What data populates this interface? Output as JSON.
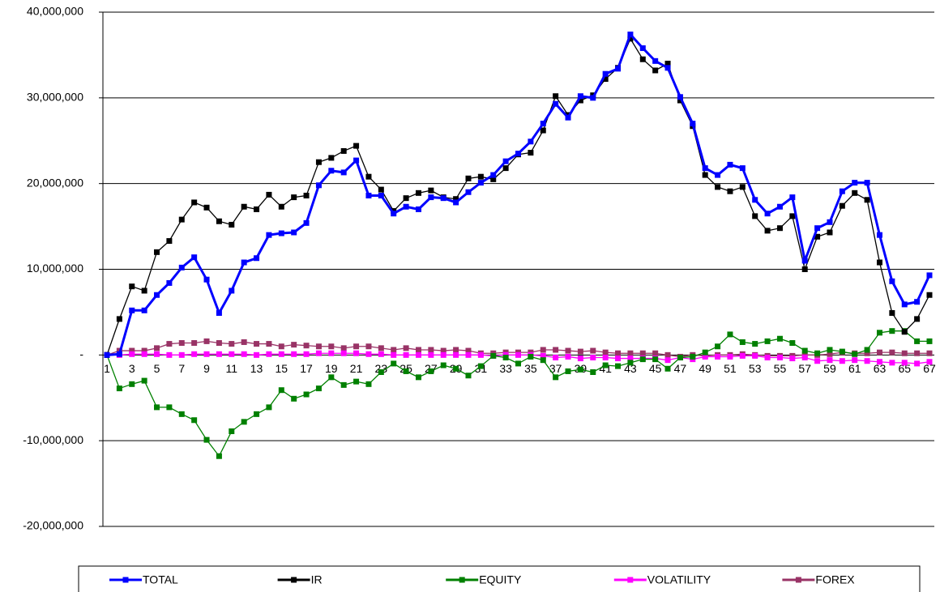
{
  "chart_data": {
    "type": "line",
    "categories": [
      1,
      null,
      3,
      null,
      5,
      null,
      7,
      null,
      9,
      null,
      11,
      null,
      13,
      null,
      15,
      null,
      17,
      null,
      19,
      null,
      21,
      null,
      23,
      null,
      25,
      null,
      27,
      null,
      29,
      null,
      31,
      null,
      33,
      null,
      35,
      null,
      37,
      null,
      39,
      null,
      41,
      null,
      43,
      null,
      45,
      null,
      47,
      null,
      49,
      null,
      51,
      null,
      53,
      null,
      55,
      null,
      57,
      null,
      59,
      null,
      61,
      null,
      63,
      null,
      65,
      null,
      67
    ],
    "ylim": [
      -20000000,
      40000000
    ],
    "yticks": [
      {
        "value": -20000000,
        "label": "-20,000,000"
      },
      {
        "value": -10000000,
        "label": "-10,000,000"
      },
      {
        "value": 0,
        "label": "-"
      },
      {
        "value": 10000000,
        "label": "10,000,000"
      },
      {
        "value": 20000000,
        "label": "20,000,000"
      },
      {
        "value": 30000000,
        "label": "30,000,000"
      },
      {
        "value": 40000000,
        "label": "40,000,000"
      }
    ],
    "grid": true,
    "legend": "bottom",
    "series": [
      {
        "name": "TOTAL",
        "color": "#0000ff",
        "values": [
          0,
          100000,
          5200000,
          5200000,
          7000000,
          8400000,
          10200000,
          11400000,
          8800000,
          4900000,
          7500000,
          10800000,
          11300000,
          14000000,
          14200000,
          14300000,
          15400000,
          19800000,
          21500000,
          21300000,
          22700000,
          18600000,
          18600000,
          16500000,
          17300000,
          17000000,
          18400000,
          18300000,
          17800000,
          19000000,
          20100000,
          21000000,
          22600000,
          23500000,
          24900000,
          27000000,
          29300000,
          27700000,
          30200000,
          30000000,
          32800000,
          33400000,
          37400000,
          35800000,
          34300000,
          33500000,
          30100000,
          27000000,
          21800000,
          21000000,
          22200000,
          21800000,
          18100000,
          16500000,
          17300000,
          18400000,
          11000000,
          14800000,
          15500000,
          19100000,
          20100000,
          20100000,
          14000000,
          8600000,
          5900000,
          6200000,
          9300000
        ]
      },
      {
        "name": "IR",
        "color": "#000000",
        "values": [
          0,
          4200000,
          8000000,
          7500000,
          12000000,
          13300000,
          15800000,
          17800000,
          17200000,
          15600000,
          15200000,
          17300000,
          17000000,
          18700000,
          17300000,
          18400000,
          18600000,
          22500000,
          23000000,
          23800000,
          24400000,
          20800000,
          19300000,
          16800000,
          18300000,
          18900000,
          19200000,
          18400000,
          18200000,
          20600000,
          20800000,
          20500000,
          21800000,
          23400000,
          23600000,
          26200000,
          30200000,
          28000000,
          29700000,
          30300000,
          32200000,
          33500000,
          36900000,
          34500000,
          33200000,
          34000000,
          29700000,
          26700000,
          21000000,
          19600000,
          19100000,
          19600000,
          16200000,
          14500000,
          14800000,
          16200000,
          10000000,
          13800000,
          14300000,
          17400000,
          18900000,
          18100000,
          10800000,
          4900000,
          2700000,
          4200000,
          7000000
        ]
      },
      {
        "name": "EQUITY",
        "color": "#008000",
        "values": [
          0,
          -3900000,
          -3400000,
          -3000000,
          -6100000,
          -6100000,
          -6900000,
          -7600000,
          -9900000,
          -11800000,
          -8900000,
          -7800000,
          -6900000,
          -6100000,
          -4100000,
          -5100000,
          -4600000,
          -3900000,
          -2600000,
          -3500000,
          -3100000,
          -3400000,
          -2000000,
          -1000000,
          -1900000,
          -2600000,
          -1900000,
          -1200000,
          -1600000,
          -2400000,
          -1300000,
          -100000,
          -300000,
          -1000000,
          -200000,
          -600000,
          -2600000,
          -1900000,
          -1700000,
          -2000000,
          -1200000,
          -1300000,
          -900000,
          -500000,
          -500000,
          -1600000,
          -300000,
          -200000,
          300000,
          1000000,
          2400000,
          1500000,
          1300000,
          1600000,
          1900000,
          1400000,
          500000,
          200000,
          600000,
          400000,
          100000,
          600000,
          2600000,
          2800000,
          2800000,
          1600000,
          1600000
        ]
      },
      {
        "name": "VOLATILITY",
        "color": "#ff00ff",
        "values": [
          0,
          0,
          100000,
          100000,
          100000,
          0,
          0,
          100000,
          100000,
          100000,
          100000,
          100000,
          0,
          100000,
          100000,
          100000,
          100000,
          200000,
          200000,
          200000,
          200000,
          100000,
          100000,
          0,
          0,
          0,
          0,
          0,
          0,
          0,
          0,
          -100000,
          0,
          0,
          0,
          -100000,
          -300000,
          -200000,
          -400000,
          -300000,
          -300000,
          -400000,
          -400000,
          -400000,
          -400000,
          -600000,
          -300000,
          -500000,
          -200000,
          -200000,
          -200000,
          -100000,
          -100000,
          -300000,
          -300000,
          -400000,
          -300000,
          -700000,
          -600000,
          -700000,
          -600000,
          -700000,
          -800000,
          -900000,
          -900000,
          -1000000,
          -800000
        ]
      },
      {
        "name": "FOREX",
        "color": "#993366",
        "values": [
          0,
          500000,
          500000,
          500000,
          800000,
          1300000,
          1400000,
          1400000,
          1600000,
          1400000,
          1300000,
          1500000,
          1300000,
          1300000,
          1000000,
          1200000,
          1100000,
          1000000,
          1000000,
          800000,
          1000000,
          1000000,
          800000,
          600000,
          800000,
          600000,
          600000,
          500000,
          600000,
          500000,
          200000,
          200000,
          300000,
          300000,
          300000,
          600000,
          600000,
          500000,
          400000,
          500000,
          300000,
          200000,
          200000,
          200000,
          200000,
          0,
          -200000,
          0,
          -100000,
          0,
          0,
          100000,
          0,
          -100000,
          -100000,
          -100000,
          0,
          0,
          100000,
          300000,
          200000,
          200000,
          300000,
          300000,
          200000,
          200000,
          200000
        ]
      }
    ]
  }
}
